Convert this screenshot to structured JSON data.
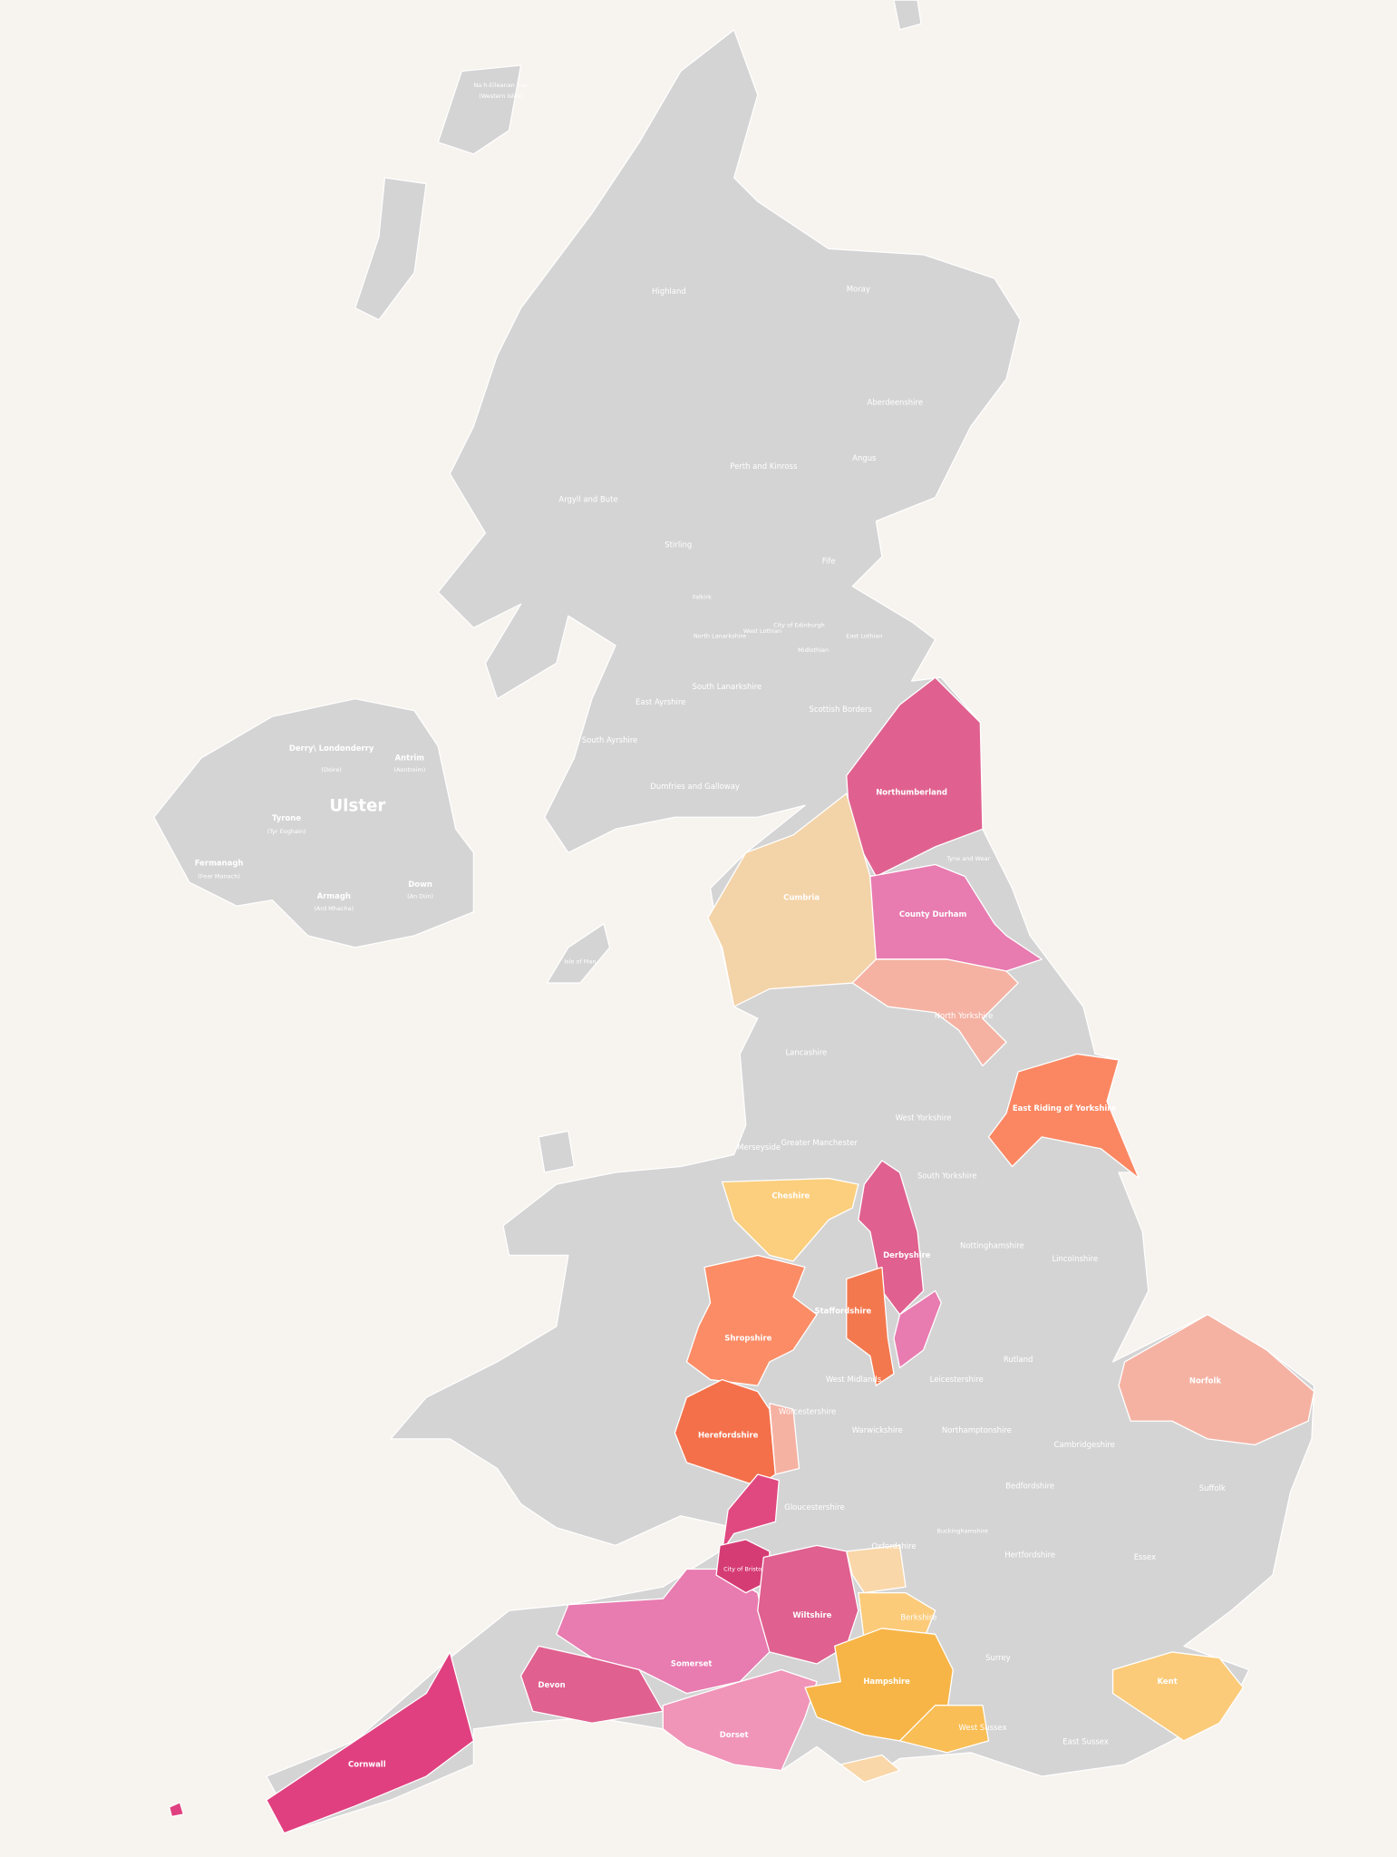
{
  "labels": [
    "Na h-Eileanan Siar",
    "(Western Isles)",
    "Highland",
    "Moray",
    "Aberdeenshire",
    "Perth and Kinross",
    "Angus",
    "Argyll and Bute",
    "Stirling",
    "Fife",
    "Falkirk",
    "West Lothian",
    "City of Edinburgh",
    "Midlothian",
    "East Lothian",
    "North Lanarkshire",
    "East Ayrshire",
    "South Lanarkshire",
    "Scottish Borders",
    "South Ayrshire",
    "Dumfries and Galloway",
    "Derry\\ Londonderry",
    "(Doire)",
    "Antrim",
    "(Aontroim)",
    "Ulster",
    "Tyrone",
    "(Tyr Eoghain)",
    "Fermanagh",
    "(Fear Manach)",
    "Armagh",
    "(Ard Mhacha)",
    "Down",
    "(An Dún)",
    "Isle of Man",
    "Northumberland",
    "Tyne and Wear",
    "Cumbria",
    "County Durham",
    "North Yorkshire",
    "Lancashire",
    "East Riding of Yorkshire",
    "West Yorkshire",
    "Greater Manchester",
    "Merseyside",
    "South Yorkshire",
    "Cheshire",
    "Derbyshire",
    "Nottinghamshire",
    "Lincolnshire",
    "Staffordshire",
    "Shropshire",
    "Rutland",
    "Leicestershire",
    "West Midlands",
    "Norfolk",
    "Worcestershire",
    "Herefordshire",
    "Warwickshire",
    "Northamptonshire",
    "Cambridgeshire",
    "Bedfordshire",
    "Suffolk",
    "Gloucestershire",
    "Buckinghamshire",
    "Oxfordshire",
    "Hertfordshire",
    "Essex",
    "City of Bristol",
    "Wiltshire",
    "Berkshire",
    "Somerset",
    "Surrey",
    "Hampshire",
    "Kent",
    "Devon",
    "Dorset",
    "West Sussex",
    "East Sussex",
    "Cornwall"
  ]
}
